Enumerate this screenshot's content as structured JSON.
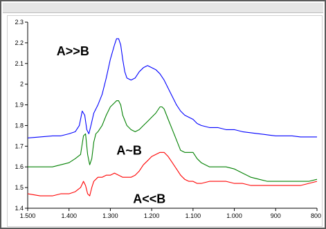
{
  "chart_data": {
    "type": "line",
    "xlabel": "",
    "ylabel": "",
    "x_reversed": true,
    "xlim": [
      1.5,
      0.8
    ],
    "ylim": [
      1.4,
      2.3
    ],
    "x_ticks": [
      "1.500",
      "1.400",
      "1.300",
      "1.200",
      "1.100",
      "1.000",
      "900",
      "800"
    ],
    "x_tick_values": [
      1.5,
      1.4,
      1.3,
      1.2,
      1.1,
      1.0,
      0.9,
      0.8
    ],
    "y_ticks": [
      "1.4",
      "1.5",
      "1.6",
      "1.7",
      "1.8",
      "1.9",
      "2",
      "2.1",
      "2.2",
      "2.3"
    ],
    "y_tick_values": [
      1.4,
      1.5,
      1.6,
      1.7,
      1.8,
      1.9,
      2.0,
      2.1,
      2.2,
      2.3
    ],
    "grid": false,
    "annotations": [
      {
        "text": "A>>B",
        "x": 1.43,
        "y": 2.14
      },
      {
        "text": "A~B",
        "x": 1.285,
        "y": 1.66
      },
      {
        "text": "A<<B",
        "x": 1.245,
        "y": 1.425
      }
    ],
    "series": [
      {
        "color": "#0000ff",
        "x": [
          1.5,
          1.47,
          1.44,
          1.42,
          1.4,
          1.385,
          1.375,
          1.368,
          1.362,
          1.357,
          1.352,
          1.347,
          1.34,
          1.33,
          1.32,
          1.31,
          1.3,
          1.29,
          1.285,
          1.28,
          1.275,
          1.27,
          1.265,
          1.26,
          1.25,
          1.24,
          1.23,
          1.22,
          1.21,
          1.2,
          1.19,
          1.18,
          1.17,
          1.16,
          1.15,
          1.14,
          1.13,
          1.12,
          1.11,
          1.1,
          1.09,
          1.08,
          1.06,
          1.04,
          1.02,
          1.0,
          0.98,
          0.96,
          0.94,
          0.92,
          0.9,
          0.88,
          0.86,
          0.84,
          0.82,
          0.8
        ],
        "y": [
          1.74,
          1.745,
          1.75,
          1.75,
          1.76,
          1.77,
          1.8,
          1.87,
          1.85,
          1.78,
          1.76,
          1.8,
          1.86,
          1.9,
          1.95,
          2.03,
          2.12,
          2.19,
          2.22,
          2.22,
          2.19,
          2.12,
          2.06,
          2.03,
          2.02,
          2.03,
          2.06,
          2.08,
          2.09,
          2.08,
          2.07,
          2.05,
          2.02,
          1.98,
          1.94,
          1.9,
          1.87,
          1.85,
          1.84,
          1.83,
          1.81,
          1.8,
          1.79,
          1.79,
          1.78,
          1.78,
          1.77,
          1.765,
          1.76,
          1.755,
          1.75,
          1.75,
          1.75,
          1.745,
          1.745,
          1.745
        ]
      },
      {
        "color": "#008000",
        "x": [
          1.5,
          1.47,
          1.44,
          1.42,
          1.4,
          1.385,
          1.372,
          1.365,
          1.36,
          1.355,
          1.35,
          1.345,
          1.34,
          1.335,
          1.33,
          1.32,
          1.31,
          1.3,
          1.29,
          1.285,
          1.28,
          1.275,
          1.27,
          1.26,
          1.25,
          1.24,
          1.23,
          1.22,
          1.21,
          1.2,
          1.19,
          1.18,
          1.175,
          1.17,
          1.16,
          1.15,
          1.14,
          1.13,
          1.12,
          1.11,
          1.1,
          1.09,
          1.08,
          1.06,
          1.04,
          1.02,
          1.0,
          0.98,
          0.96,
          0.94,
          0.92,
          0.9,
          0.88,
          0.86,
          0.84,
          0.82,
          0.8
        ],
        "y": [
          1.6,
          1.6,
          1.6,
          1.61,
          1.62,
          1.64,
          1.66,
          1.75,
          1.76,
          1.66,
          1.61,
          1.64,
          1.72,
          1.76,
          1.77,
          1.8,
          1.85,
          1.89,
          1.91,
          1.92,
          1.92,
          1.9,
          1.85,
          1.8,
          1.78,
          1.77,
          1.78,
          1.8,
          1.82,
          1.84,
          1.86,
          1.89,
          1.89,
          1.88,
          1.83,
          1.78,
          1.73,
          1.68,
          1.67,
          1.67,
          1.67,
          1.64,
          1.62,
          1.6,
          1.6,
          1.6,
          1.59,
          1.57,
          1.55,
          1.54,
          1.53,
          1.53,
          1.53,
          1.53,
          1.53,
          1.53,
          1.54
        ]
      },
      {
        "color": "#ff0000",
        "x": [
          1.5,
          1.47,
          1.44,
          1.42,
          1.4,
          1.385,
          1.372,
          1.365,
          1.36,
          1.355,
          1.35,
          1.345,
          1.34,
          1.33,
          1.32,
          1.31,
          1.3,
          1.29,
          1.28,
          1.27,
          1.26,
          1.25,
          1.24,
          1.23,
          1.22,
          1.21,
          1.2,
          1.19,
          1.18,
          1.17,
          1.16,
          1.15,
          1.14,
          1.13,
          1.12,
          1.11,
          1.1,
          1.09,
          1.08,
          1.06,
          1.04,
          1.02,
          1.0,
          0.98,
          0.96,
          0.94,
          0.92,
          0.9,
          0.88,
          0.86,
          0.84,
          0.82,
          0.8
        ],
        "y": [
          1.47,
          1.46,
          1.46,
          1.47,
          1.47,
          1.48,
          1.5,
          1.53,
          1.51,
          1.47,
          1.46,
          1.5,
          1.53,
          1.55,
          1.55,
          1.56,
          1.56,
          1.57,
          1.56,
          1.55,
          1.55,
          1.55,
          1.56,
          1.58,
          1.61,
          1.63,
          1.65,
          1.66,
          1.67,
          1.67,
          1.65,
          1.62,
          1.59,
          1.56,
          1.54,
          1.53,
          1.53,
          1.52,
          1.52,
          1.53,
          1.53,
          1.53,
          1.52,
          1.52,
          1.51,
          1.51,
          1.51,
          1.51,
          1.51,
          1.51,
          1.51,
          1.52,
          1.53
        ]
      }
    ]
  }
}
